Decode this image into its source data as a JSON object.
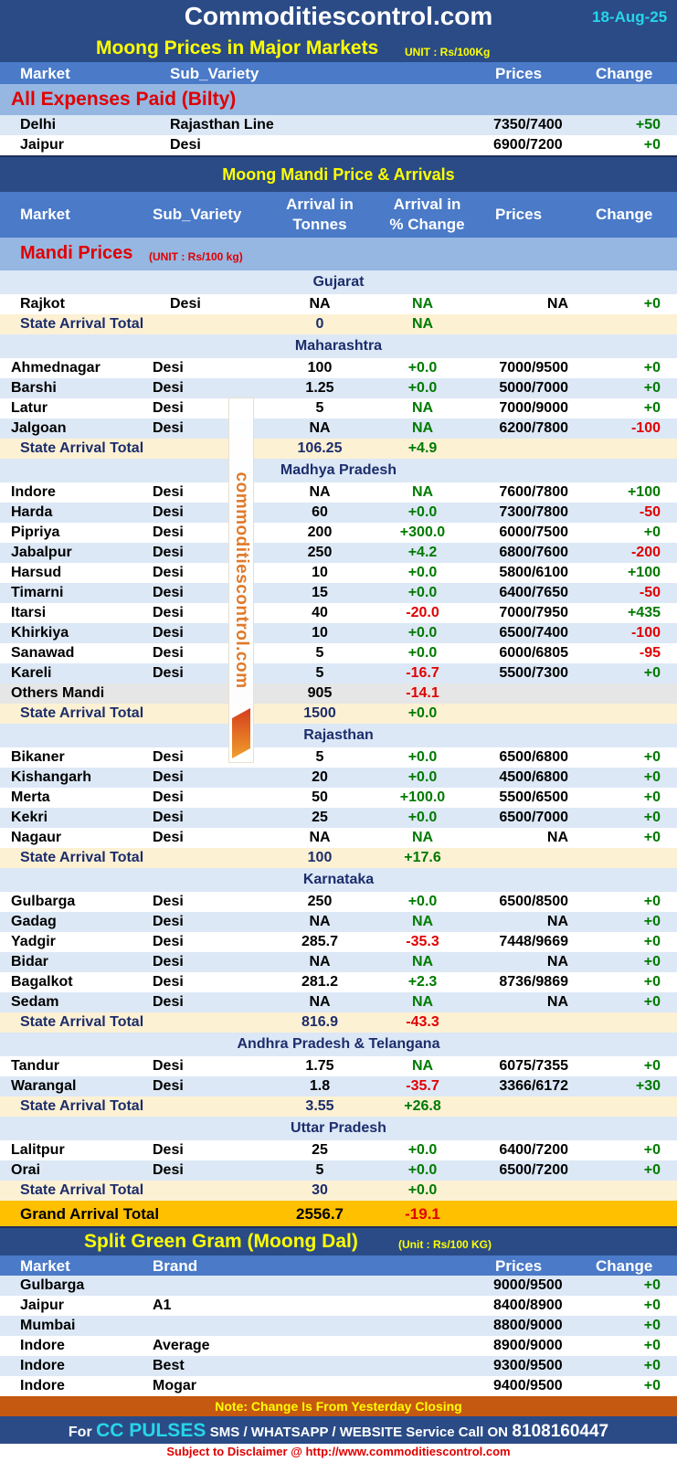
{
  "header": {
    "site": "Commoditiescontrol.com",
    "date": "18-Aug-25"
  },
  "major": {
    "title": "Moong Prices in Major Markets",
    "unit": "UNIT : Rs/100Kg",
    "cols": {
      "market": "Market",
      "sub": "Sub_Variety",
      "prices": "Prices",
      "change": "Change"
    },
    "section": "All Expenses Paid (Bilty)",
    "rows": [
      {
        "market": "Delhi",
        "sub": "Rajasthan Line",
        "prices": "7350/7400",
        "change": "+50"
      },
      {
        "market": "Jaipur",
        "sub": "Desi",
        "prices": "6900/7200",
        "change": "+0"
      }
    ]
  },
  "mandi": {
    "title": "Moong Mandi Price & Arrivals",
    "cols": {
      "market": "Market",
      "sub": "Sub_Variety",
      "arrival1": "Arrival in",
      "arrival2": "Tonnes",
      "pct1": "Arrival  in",
      "pct2": "% Change",
      "prices": "Prices",
      "change": "Change"
    },
    "section": "Mandi Prices",
    "unit": "(UNIT : Rs/100 kg)",
    "states": [
      {
        "name": "Gujarat",
        "indent": true,
        "rows": [
          {
            "market": "Rajkot",
            "sub": "Desi",
            "arrival": "NA",
            "pct": "NA",
            "prices": "NA",
            "change": "+0"
          }
        ],
        "total": {
          "label": "State Arrival Total",
          "arrival": "0",
          "pct": "NA"
        }
      },
      {
        "name": "Maharashtra",
        "rows": [
          {
            "market": "Ahmednagar",
            "sub": "Desi",
            "arrival": "100",
            "pct": "+0.0",
            "prices": "7000/9500",
            "change": "+0"
          },
          {
            "market": "Barshi",
            "sub": "Desi",
            "arrival": "1.25",
            "pct": "+0.0",
            "prices": "5000/7000",
            "change": "+0"
          },
          {
            "market": "Latur",
            "sub": "Desi",
            "arrival": "5",
            "pct": "NA",
            "prices": "7000/9000",
            "change": "+0"
          },
          {
            "market": "Jalgoan",
            "sub": "Desi",
            "arrival": "NA",
            "pct": "NA",
            "prices": "6200/7800",
            "change": "-100"
          }
        ],
        "total": {
          "label": "State Arrival Total",
          "arrival": "106.25",
          "pct": "+4.9"
        }
      },
      {
        "name": "Madhya Pradesh",
        "rows": [
          {
            "market": "Indore",
            "sub": "Desi",
            "arrival": "NA",
            "pct": "NA",
            "prices": "7600/7800",
            "change": "+100"
          },
          {
            "market": "Harda",
            "sub": "Desi",
            "arrival": "60",
            "pct": "+0.0",
            "prices": "7300/7800",
            "change": "-50"
          },
          {
            "market": "Pipriya",
            "sub": "Desi",
            "arrival": "200",
            "pct": "+300.0",
            "prices": "6000/7500",
            "change": "+0"
          },
          {
            "market": "Jabalpur",
            "sub": "Desi",
            "arrival": "250",
            "pct": "+4.2",
            "prices": "6800/7600",
            "change": "-200"
          },
          {
            "market": "Harsud",
            "sub": "Desi",
            "arrival": "10",
            "pct": "+0.0",
            "prices": "5800/6100",
            "change": "+100"
          },
          {
            "market": "Timarni",
            "sub": "Desi",
            "arrival": "15",
            "pct": "+0.0",
            "prices": "6400/7650",
            "change": "-50"
          },
          {
            "market": "Itarsi",
            "sub": "Desi",
            "arrival": "40",
            "pct": "-20.0",
            "prices": "7000/7950",
            "change": "+435"
          },
          {
            "market": "Khirkiya",
            "sub": "Desi",
            "arrival": "10",
            "pct": "+0.0",
            "prices": "6500/7400",
            "change": "-100"
          },
          {
            "market": "Sanawad",
            "sub": "Desi",
            "arrival": "5",
            "pct": "+0.0",
            "prices": "6000/6805",
            "change": "-95"
          },
          {
            "market": "Kareli",
            "sub": "Desi",
            "arrival": "5",
            "pct": "-16.7",
            "prices": "5500/7300",
            "change": "+0"
          },
          {
            "market": "Others Mandi",
            "sub": "",
            "arrival": "905",
            "pct": "-14.1",
            "prices": "",
            "change": "",
            "grey": true
          }
        ],
        "total": {
          "label": "State Arrival Total",
          "arrival": "1500",
          "pct": "+0.0"
        }
      },
      {
        "name": "Rajasthan",
        "rows": [
          {
            "market": "Bikaner",
            "sub": "Desi",
            "arrival": "5",
            "pct": "+0.0",
            "prices": "6500/6800",
            "change": "+0"
          },
          {
            "market": "Kishangarh",
            "sub": "Desi",
            "arrival": "20",
            "pct": "+0.0",
            "prices": "4500/6800",
            "change": "+0"
          },
          {
            "market": "Merta",
            "sub": "Desi",
            "arrival": "50",
            "pct": "+100.0",
            "prices": "5500/6500",
            "change": "+0"
          },
          {
            "market": "Kekri",
            "sub": "Desi",
            "arrival": "25",
            "pct": "+0.0",
            "prices": "6500/7000",
            "change": "+0"
          },
          {
            "market": "Nagaur",
            "sub": "Desi",
            "arrival": "NA",
            "pct": "NA",
            "prices": "NA",
            "change": "+0"
          }
        ],
        "total": {
          "label": "State Arrival Total",
          "arrival": "100",
          "pct": "+17.6"
        }
      },
      {
        "name": "Karnataka",
        "rows": [
          {
            "market": "Gulbarga",
            "sub": "Desi",
            "arrival": "250",
            "pct": "+0.0",
            "prices": "6500/8500",
            "change": "+0"
          },
          {
            "market": "Gadag",
            "sub": "Desi",
            "arrival": "NA",
            "pct": "NA",
            "prices": "NA",
            "change": "+0"
          },
          {
            "market": "Yadgir",
            "sub": "Desi",
            "arrival": "285.7",
            "pct": "-35.3",
            "prices": "7448/9669",
            "change": "+0"
          },
          {
            "market": "Bidar",
            "sub": "Desi",
            "arrival": "NA",
            "pct": "NA",
            "prices": "NA",
            "change": "+0"
          },
          {
            "market": "Bagalkot",
            "sub": "Desi",
            "arrival": "281.2",
            "pct": "+2.3",
            "prices": "8736/9869",
            "change": "+0"
          },
          {
            "market": "Sedam",
            "sub": "Desi",
            "arrival": "NA",
            "pct": "NA",
            "prices": "NA",
            "change": "+0"
          }
        ],
        "total": {
          "label": "State Arrival Total",
          "arrival": "816.9",
          "pct": "-43.3"
        }
      },
      {
        "name": "Andhra Pradesh & Telangana",
        "rows": [
          {
            "market": "Tandur",
            "sub": "Desi",
            "arrival": "1.75",
            "pct": "NA",
            "prices": "6075/7355",
            "change": "+0"
          },
          {
            "market": "Warangal",
            "sub": "Desi",
            "arrival": "1.8",
            "pct": "-35.7",
            "prices": "3366/6172",
            "change": "+30"
          }
        ],
        "total": {
          "label": "State Arrival Total",
          "arrival": "3.55",
          "pct": "+26.8"
        }
      },
      {
        "name": "Uttar Pradesh",
        "rows": [
          {
            "market": "Lalitpur",
            "sub": "Desi",
            "arrival": "25",
            "pct": "+0.0",
            "prices": "6400/7200",
            "change": "+0"
          },
          {
            "market": "Orai",
            "sub": "Desi",
            "arrival": "5",
            "pct": "+0.0",
            "prices": "6500/7200",
            "change": "+0"
          }
        ],
        "total": {
          "label": "State Arrival Total",
          "arrival": "30",
          "pct": "+0.0"
        }
      }
    ],
    "grand": {
      "label": "Grand Arrival Total",
      "arrival": "2556.7",
      "pct": "-19.1"
    }
  },
  "dal": {
    "title": "Split Green Gram (Moong Dal)",
    "unit": "(Unit : Rs/100 KG)",
    "cols": {
      "market": "Market",
      "brand": "Brand",
      "prices": "Prices",
      "change": "Change"
    },
    "rows": [
      {
        "market": "Gulbarga",
        "brand": "",
        "prices": "9000/9500",
        "change": "+0"
      },
      {
        "market": "Jaipur",
        "brand": "A1",
        "prices": "8400/8900",
        "change": "+0"
      },
      {
        "market": "Mumbai",
        "brand": "",
        "prices": "8800/9000",
        "change": "+0"
      },
      {
        "market": "Indore",
        "brand": "Average",
        "prices": "8900/9000",
        "change": "+0"
      },
      {
        "market": "Indore",
        "brand": "Best",
        "prices": "9300/9500",
        "change": "+0"
      },
      {
        "market": "Indore",
        "brand": "Mogar",
        "prices": "9400/9500",
        "change": "+0"
      }
    ]
  },
  "footer": {
    "note": "Note: Change Is From Yesterday Closing",
    "for": "For",
    "pulses": "CC PULSES",
    "service": "SMS / WHATSAPP / WEBSITE Service Call  ON",
    "phone": "8108160447",
    "disclaimer": "Subject to Disclaimer @  http://www.commoditiescontrol.com"
  },
  "watermark": {
    "text": "commoditiescontrol.com",
    "accent": "#e07a2a"
  },
  "colors": {
    "navy": "#2a4b86",
    "blue": "#4a7ac8",
    "light": "#dce8f6",
    "cream": "#fdf1d4",
    "amber": "#ffc000",
    "rust": "#c65911",
    "green": "#007a00",
    "red": "#e00000"
  }
}
